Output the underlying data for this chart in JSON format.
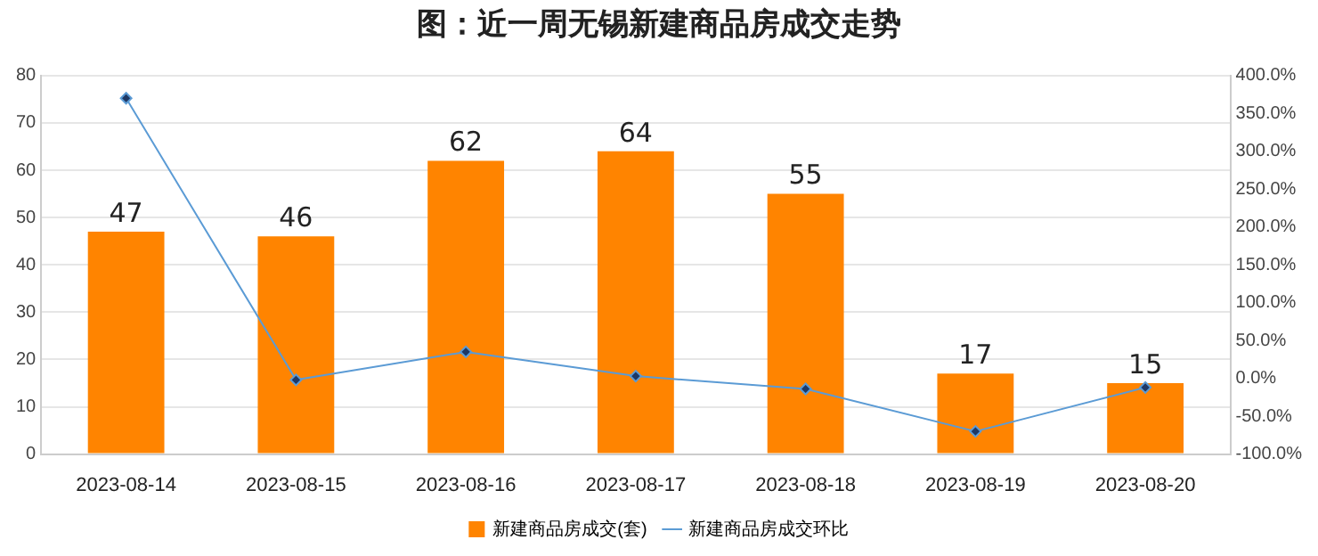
{
  "chart_data": {
    "type": "bar",
    "title": "图：近一周无锡新建商品房成交走势",
    "categories": [
      "2023-08-14",
      "2023-08-15",
      "2023-08-16",
      "2023-08-17",
      "2023-08-18",
      "2023-08-19",
      "2023-08-20"
    ],
    "series": [
      {
        "name": "新建商品房成交(套)",
        "color": "#ff8400",
        "values": [
          47,
          46,
          62,
          64,
          55,
          17,
          15
        ],
        "data_labels": true
      },
      {
        "name": "新建商品房成交环比",
        "type": "line",
        "axis": "y2",
        "color": "#5b9bd5",
        "marker": "diamond",
        "values": [
          370,
          -2,
          35,
          3,
          -14,
          -70,
          -12
        ]
      }
    ],
    "ylim": [
      0,
      80
    ],
    "yticks": [
      0,
      10,
      20,
      30,
      40,
      50,
      60,
      70,
      80
    ],
    "y2lim": [
      -100,
      400
    ],
    "y2ticks": [
      {
        "value": -100,
        "label": "-100.0%"
      },
      {
        "value": -50,
        "label": "-50.0%"
      },
      {
        "value": 0,
        "label": "0.0%"
      },
      {
        "value": 50,
        "label": "50.0%"
      },
      {
        "value": 100,
        "label": "100.0%"
      },
      {
        "value": 150,
        "label": "150.0%"
      },
      {
        "value": 200,
        "label": "200.0%"
      },
      {
        "value": 250,
        "label": "250.0%"
      },
      {
        "value": 300,
        "label": "300.0%"
      },
      {
        "value": 350,
        "label": "350.0%"
      },
      {
        "value": 400,
        "label": "400.0%"
      }
    ],
    "grid": "y",
    "legend": "bottom"
  }
}
